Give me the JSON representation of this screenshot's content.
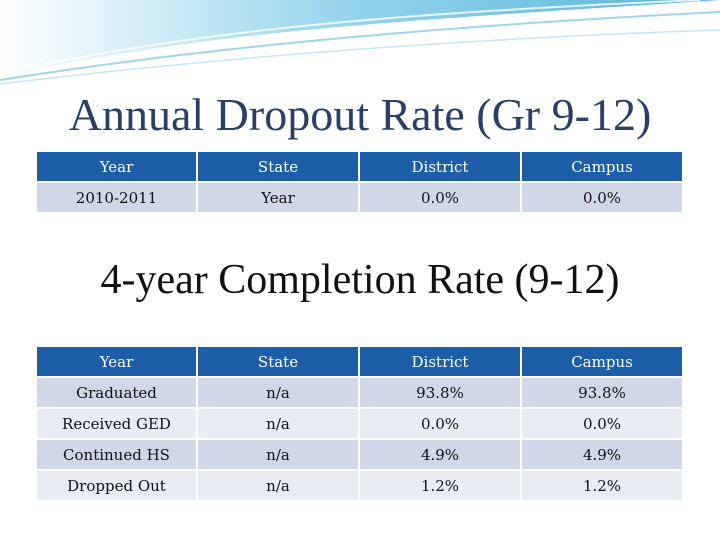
{
  "theme": {
    "header_color": "#1d5ea8",
    "row_odd": "#cfd7e9",
    "row_even": "#e8ecf5",
    "title_color": "#2a3f66"
  },
  "dropout": {
    "title": "Annual Dropout Rate (Gr 9-12)",
    "headers": [
      "Year",
      "State",
      "District",
      "Campus"
    ],
    "rows": [
      [
        "2010-2011",
        "Year",
        "0.0%",
        "0.0%"
      ]
    ]
  },
  "completion": {
    "title": "4-year Completion Rate (9-12)",
    "headers": [
      "Year",
      "State",
      "District",
      "Campus"
    ],
    "rows": [
      [
        "Graduated",
        "n/a",
        "93.8%",
        "93.8%"
      ],
      [
        "Received GED",
        "n/a",
        "0.0%",
        "0.0%"
      ],
      [
        "Continued HS",
        "n/a",
        "4.9%",
        "4.9%"
      ],
      [
        "Dropped Out",
        "n/a",
        "1.2%",
        "1.2%"
      ]
    ]
  }
}
